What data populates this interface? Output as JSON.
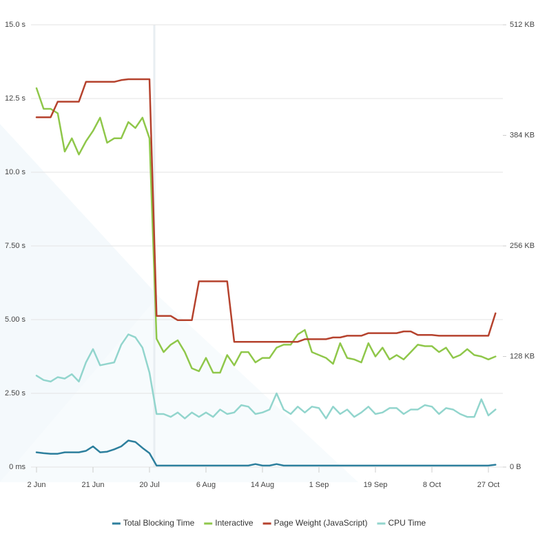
{
  "chart_data": {
    "type": "line",
    "categories": [
      "2 Jun",
      null,
      null,
      null,
      null,
      null,
      null,
      null,
      "21 Jun",
      null,
      null,
      null,
      null,
      null,
      null,
      null,
      "20 Jul",
      null,
      null,
      null,
      null,
      null,
      null,
      null,
      "6 Aug",
      null,
      null,
      null,
      null,
      null,
      null,
      null,
      "14 Aug",
      null,
      null,
      null,
      null,
      null,
      null,
      null,
      "1 Sep",
      null,
      null,
      null,
      null,
      null,
      null,
      null,
      "19 Sep",
      null,
      null,
      null,
      null,
      null,
      null,
      null,
      "8 Oct",
      null,
      null,
      null,
      null,
      null,
      null,
      null,
      "27 Oct",
      null
    ],
    "ylim": [
      0,
      15
    ],
    "yticks": [
      {
        "value": 0,
        "label": "0 ms"
      },
      {
        "value": 2.5,
        "label": "2.50 s"
      },
      {
        "value": 5,
        "label": "5.00 s"
      },
      {
        "value": 7.5,
        "label": "7.50 s"
      },
      {
        "value": 10,
        "label": "10.0 s"
      },
      {
        "value": 12.5,
        "label": "12.5 s"
      },
      {
        "value": 15,
        "label": "15.0 s"
      }
    ],
    "y2lim": [
      0,
      512
    ],
    "y2ticks": [
      {
        "value": 0,
        "label": "0 B"
      },
      {
        "value": 128,
        "label": "128 KB"
      },
      {
        "value": 256,
        "label": "256 KB"
      },
      {
        "value": 384,
        "label": "384 KB"
      },
      {
        "value": 512,
        "label": "512 KB"
      }
    ],
    "grid": true,
    "legend": "bottom",
    "series": [
      {
        "name": "Total Blocking Time",
        "color": "#2d7f9d",
        "values": [
          0.5,
          0.47,
          0.45,
          0.45,
          0.5,
          0.5,
          0.5,
          0.55,
          0.7,
          0.5,
          0.52,
          0.6,
          0.7,
          0.9,
          0.85,
          0.65,
          0.47,
          0.05,
          0.05,
          0.05,
          0.05,
          0.05,
          0.05,
          0.05,
          0.05,
          0.05,
          0.05,
          0.05,
          0.05,
          0.05,
          0.05,
          0.1,
          0.05,
          0.05,
          0.1,
          0.05,
          0.05,
          0.05,
          0.05,
          0.05,
          0.05,
          0.05,
          0.05,
          0.05,
          0.05,
          0.05,
          0.05,
          0.05,
          0.05,
          0.05,
          0.05,
          0.05,
          0.05,
          0.05,
          0.05,
          0.05,
          0.05,
          0.05,
          0.05,
          0.05,
          0.05,
          0.05,
          0.05,
          0.05,
          0.05,
          0.08
        ]
      },
      {
        "name": "Interactive",
        "color": "#8fc74a",
        "values": [
          12.85,
          12.15,
          12.15,
          12.0,
          10.7,
          11.15,
          10.6,
          11.05,
          11.4,
          11.85,
          11.0,
          11.15,
          11.15,
          11.7,
          11.5,
          11.85,
          11.15,
          4.35,
          3.9,
          4.15,
          4.3,
          3.9,
          3.35,
          3.25,
          3.7,
          3.2,
          3.2,
          3.8,
          3.45,
          3.9,
          3.9,
          3.55,
          3.7,
          3.7,
          4.05,
          4.15,
          4.15,
          4.5,
          4.65,
          3.9,
          3.8,
          3.7,
          3.5,
          4.2,
          3.7,
          3.65,
          3.55,
          4.2,
          3.75,
          4.05,
          3.65,
          3.8,
          3.65,
          3.9,
          4.15,
          4.1,
          4.1,
          3.9,
          4.05,
          3.7,
          3.8,
          4.0,
          3.8,
          3.75,
          3.65,
          3.75
        ]
      },
      {
        "name": "Page Weight (JavaScript)",
        "color": "#b5422d",
        "axis": "y2",
        "values": [
          405,
          405,
          405,
          423,
          423,
          423,
          423,
          446,
          446,
          446,
          446,
          446,
          448,
          449,
          449,
          449,
          449,
          175,
          175,
          175,
          170,
          170,
          170,
          215,
          215,
          215,
          215,
          215,
          145,
          145,
          145,
          145,
          145,
          145,
          145,
          145,
          145,
          145,
          148,
          148,
          148,
          148,
          150,
          150,
          152,
          152,
          152,
          155,
          155,
          155,
          155,
          155,
          157,
          157,
          153,
          153,
          153,
          152,
          152,
          152,
          152,
          152,
          152,
          152,
          152,
          178
        ]
      },
      {
        "name": "CPU Time",
        "color": "#92d5cd",
        "values": [
          3.1,
          2.95,
          2.9,
          3.05,
          3.0,
          3.15,
          2.9,
          3.55,
          4.0,
          3.45,
          3.5,
          3.55,
          4.15,
          4.5,
          4.4,
          4.05,
          3.2,
          1.8,
          1.8,
          1.7,
          1.85,
          1.65,
          1.85,
          1.7,
          1.85,
          1.7,
          1.95,
          1.8,
          1.85,
          2.1,
          2.05,
          1.8,
          1.85,
          1.95,
          2.5,
          1.95,
          1.8,
          2.05,
          1.85,
          2.05,
          2.0,
          1.65,
          2.05,
          1.8,
          1.95,
          1.7,
          1.85,
          2.05,
          1.8,
          1.85,
          2.0,
          2.0,
          1.8,
          1.95,
          1.95,
          2.1,
          2.05,
          1.8,
          2.0,
          1.95,
          1.8,
          1.7,
          1.7,
          2.3,
          1.75,
          1.95
        ]
      }
    ]
  }
}
